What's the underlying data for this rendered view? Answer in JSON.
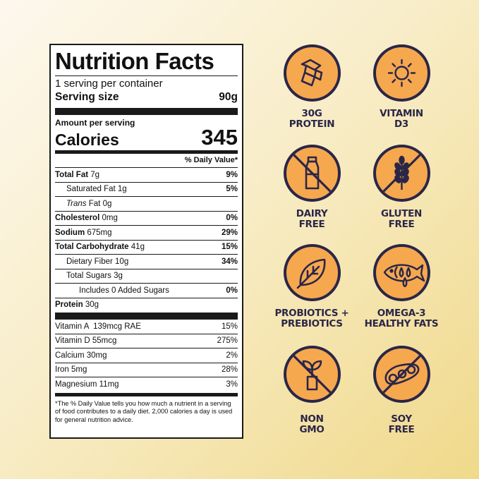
{
  "panel": {
    "title": "Nutrition Facts",
    "servings_per_container": "1 serving per container",
    "serving_size_label": "Serving size",
    "serving_size_value": "90g",
    "amount_per_serving": "Amount per serving",
    "calories_label": "Calories",
    "calories_value": "345",
    "dv_header": "% Daily Value*",
    "nutrients": [
      {
        "name": "Total Fat",
        "amount": "7g",
        "dv": "9%"
      },
      {
        "name": "Saturated Fat",
        "amount": "1g",
        "dv": "5%"
      },
      {
        "name": "Trans",
        "name_rest": " Fat",
        "amount": "0g",
        "dv": ""
      },
      {
        "name": "Cholesterol",
        "amount": "0mg",
        "dv": "0%"
      },
      {
        "name": "Sodium",
        "amount": "675mg",
        "dv": "29%"
      },
      {
        "name": "Total Carbohydrate",
        "amount": "41g",
        "dv": "15%"
      },
      {
        "name": "Dietary Fiber",
        "amount": "10g",
        "dv": "34%"
      },
      {
        "name": "Total Sugars",
        "amount": "3g",
        "dv": ""
      },
      {
        "name": "Includes 0 Added Sugars",
        "amount": "",
        "dv": "0%"
      },
      {
        "name": "Protein",
        "amount": "30g",
        "dv": ""
      }
    ],
    "vitamins": [
      {
        "name": "Vitamin A  139mcg RAE",
        "dv": "15%"
      },
      {
        "name": "Vitamin D 55mcg",
        "dv": "275%"
      },
      {
        "name": "Calcium 30mg",
        "dv": "2%"
      },
      {
        "name": "Iron 5mg",
        "dv": "28%"
      },
      {
        "name": "Magnesium 11mg",
        "dv": "3%"
      }
    ],
    "footnote": "*The % Daily Value tells you how much a nutrient in a serving of food contributes to a daily diet. 2,000 calories a day is used for general nutrition advice."
  },
  "badges": [
    {
      "line1": "30G",
      "line2": "PROTEIN",
      "icon": "protein-ribbon-icon"
    },
    {
      "line1": "VITAMIN",
      "line2": "D3",
      "icon": "sun-icon"
    },
    {
      "line1": "DAIRY",
      "line2": "FREE",
      "icon": "no-milk-bottle-icon"
    },
    {
      "line1": "GLUTEN",
      "line2": "FREE",
      "icon": "no-wheat-icon"
    },
    {
      "line1": "PROBIOTICS +",
      "line2": "PREBIOTICS",
      "icon": "leaf-icon"
    },
    {
      "line1": "OMEGA-3",
      "line2": "HEALTHY FATS",
      "icon": "fish-drops-icon"
    },
    {
      "line1": "NON",
      "line2": "GMO",
      "icon": "no-gmo-plant-icon"
    },
    {
      "line1": "SOY",
      "line2": "FREE",
      "icon": "no-soybean-icon"
    }
  ],
  "colors": {
    "badge_fill": "#f6a84f",
    "badge_outline": "#2a2648",
    "panel_border": "#1a1a1a"
  }
}
